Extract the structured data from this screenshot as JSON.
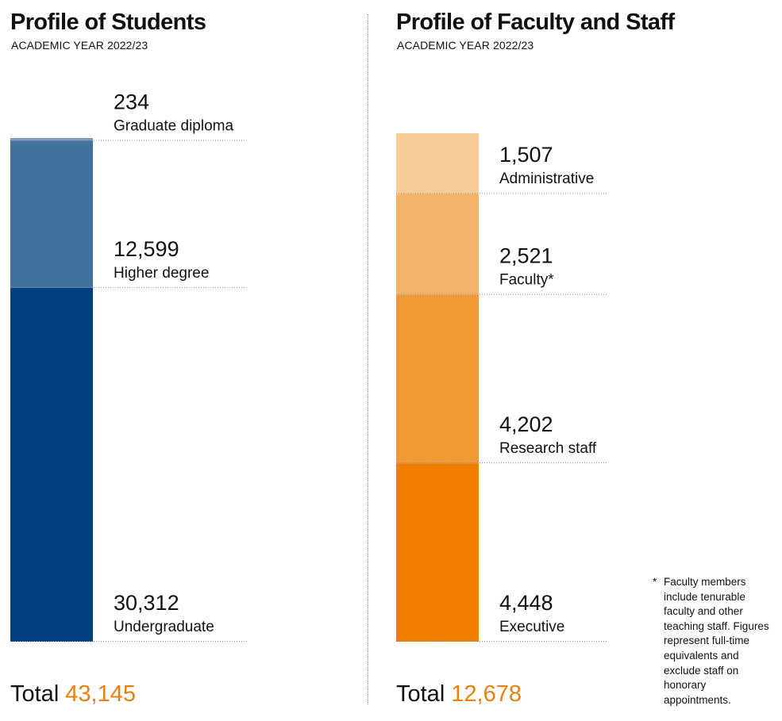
{
  "students": {
    "title": "Profile of Students",
    "subtitle": "ACADEMIC YEAR 2022/23",
    "total_label": "Total",
    "total_value": "43,145"
  },
  "staff": {
    "title": "Profile of Faculty and Staff",
    "subtitle": "ACADEMIC YEAR 2022/23",
    "total_label": "Total",
    "total_value": "12,678"
  },
  "footnote": {
    "marker": "*",
    "text": "Faculty members include tenurable faculty and other teaching staff. Figures represent full-time equivalents and exclude staff on honorary appointments."
  },
  "colors": {
    "total_accent": "#e8820c",
    "dotted_line": "#8c8c8c"
  },
  "chart_data": [
    {
      "type": "bar",
      "stacked": true,
      "title": "Profile of Students",
      "subtitle": "ACADEMIC YEAR 2022/23",
      "categories": [
        "Undergraduate",
        "Higher degree",
        "Graduate diploma"
      ],
      "values": [
        30312,
        12599,
        234
      ],
      "value_labels": [
        "30,312",
        "12,599",
        "234"
      ],
      "colors": [
        "#00407f",
        "#43729e",
        "#7e9dc0"
      ],
      "total": 43145,
      "grid": false,
      "legend": "labels beside segments"
    },
    {
      "type": "bar",
      "stacked": true,
      "title": "Profile of Faculty and Staff",
      "subtitle": "ACADEMIC YEAR 2022/23",
      "categories": [
        "Executive",
        "Research staff",
        "Faculty*",
        "Administrative"
      ],
      "values": [
        4448,
        4202,
        2521,
        1507
      ],
      "value_labels": [
        "4,448",
        "4,202",
        "2,521",
        "1,507"
      ],
      "colors": [
        "#ef7d00",
        "#f19a35",
        "#f4b26b",
        "#f8cc99"
      ],
      "total": 12678,
      "grid": false,
      "legend": "labels beside segments"
    }
  ]
}
